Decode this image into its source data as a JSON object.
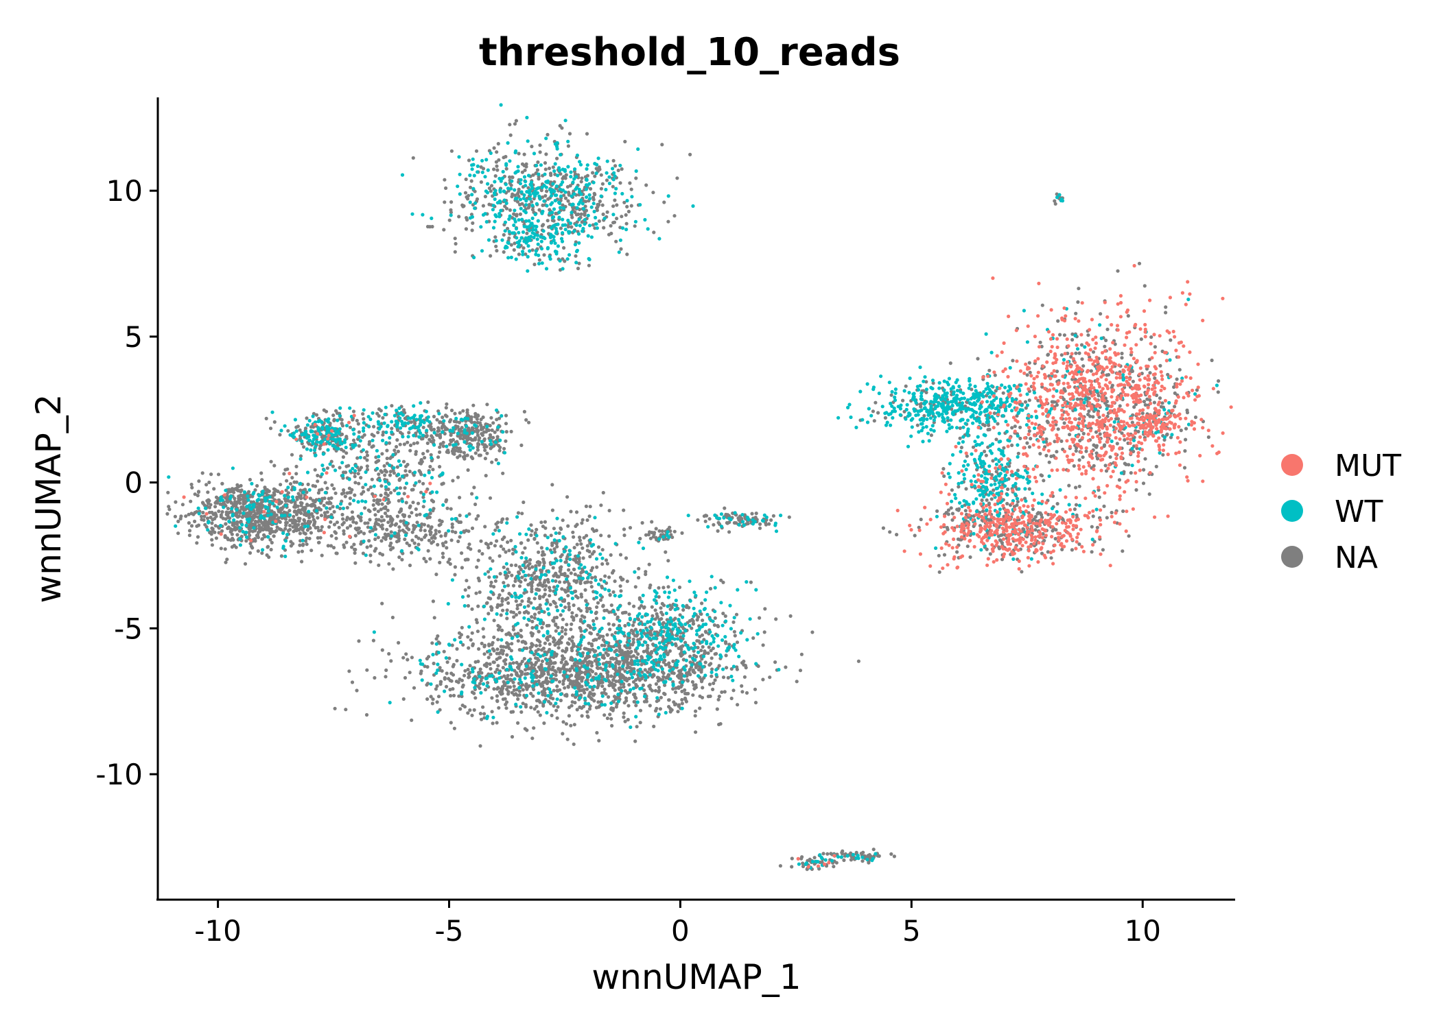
{
  "chart_data": {
    "type": "scatter",
    "title": "threshold_10_reads",
    "xlabel": "wnnUMAP_1",
    "ylabel": "wnnUMAP_2",
    "xlim": [
      -11.3,
      12
    ],
    "ylim": [
      -14.3,
      13.2
    ],
    "xticks": [
      -10,
      -5,
      0,
      5,
      10
    ],
    "xtick_labels": [
      "-10",
      "-5",
      "0",
      "5",
      "10"
    ],
    "yticks": [
      -10,
      -5,
      0,
      5,
      10
    ],
    "ytick_labels": [
      "-10",
      "-5",
      "0",
      "5",
      "10"
    ],
    "grid": false,
    "legend_position": "right",
    "series": [
      {
        "name": "MUT",
        "color": "#F8766D"
      },
      {
        "name": "WT",
        "color": "#00BFC4"
      },
      {
        "name": "NA",
        "color": "#7F7F7F"
      }
    ],
    "clusters": [
      {
        "cx": -2.9,
        "cy": 9.8,
        "sx": 1.0,
        "sy": 0.9,
        "n": 750,
        "mix": [
          0.0,
          0.45,
          0.55
        ]
      },
      {
        "cx": -3.2,
        "cy": 8.3,
        "sx": 0.6,
        "sy": 0.4,
        "n": 120,
        "mix": [
          0.0,
          0.7,
          0.3
        ]
      },
      {
        "cx": 8.2,
        "cy": 9.7,
        "sx": 0.05,
        "sy": 0.1,
        "n": 14,
        "mix": [
          0.0,
          0.3,
          0.7
        ]
      },
      {
        "cx": 9.0,
        "cy": 2.7,
        "sx": 1.1,
        "sy": 1.5,
        "n": 1300,
        "mix": [
          0.62,
          0.06,
          0.32
        ]
      },
      {
        "cx": 5.9,
        "cy": 2.6,
        "sx": 0.8,
        "sy": 0.45,
        "n": 500,
        "mix": [
          0.0,
          0.8,
          0.2
        ]
      },
      {
        "cx": 6.8,
        "cy": 0.0,
        "sx": 0.45,
        "sy": 0.9,
        "n": 300,
        "mix": [
          0.1,
          0.6,
          0.3
        ]
      },
      {
        "cx": 7.2,
        "cy": -1.6,
        "sx": 0.9,
        "sy": 0.5,
        "n": 600,
        "mix": [
          0.6,
          0.05,
          0.35
        ]
      },
      {
        "cx": 10.2,
        "cy": 2.0,
        "sx": 0.35,
        "sy": 0.35,
        "n": 120,
        "mix": [
          0.6,
          0.1,
          0.3
        ]
      },
      {
        "cx": -7.7,
        "cy": 1.7,
        "sx": 0.45,
        "sy": 0.35,
        "n": 250,
        "mix": [
          0.02,
          0.5,
          0.48
        ]
      },
      {
        "cx": -5.9,
        "cy": 2.1,
        "sx": 0.5,
        "sy": 0.3,
        "n": 150,
        "mix": [
          0.0,
          0.6,
          0.4
        ]
      },
      {
        "cx": -4.6,
        "cy": 1.6,
        "sx": 0.45,
        "sy": 0.45,
        "n": 300,
        "mix": [
          0.0,
          0.15,
          0.85
        ]
      },
      {
        "cx": -9.0,
        "cy": -1.1,
        "sx": 0.8,
        "sy": 0.55,
        "n": 900,
        "mix": [
          0.01,
          0.12,
          0.87
        ]
      },
      {
        "cx": -6.5,
        "cy": 0.2,
        "sx": 0.9,
        "sy": 0.8,
        "n": 350,
        "mix": [
          0.01,
          0.2,
          0.79
        ]
      },
      {
        "cx": -6.0,
        "cy": -1.7,
        "sx": 0.9,
        "sy": 0.5,
        "n": 250,
        "mix": [
          0.0,
          0.05,
          0.95
        ]
      },
      {
        "cx": -2.3,
        "cy": -6.5,
        "sx": 1.6,
        "sy": 0.8,
        "n": 1500,
        "mix": [
          0.0,
          0.15,
          0.85
        ]
      },
      {
        "cx": -2.8,
        "cy": -3.3,
        "sx": 1.0,
        "sy": 1.1,
        "n": 700,
        "mix": [
          0.0,
          0.18,
          0.82
        ]
      },
      {
        "cx": -0.2,
        "cy": -5.2,
        "sx": 0.8,
        "sy": 0.8,
        "n": 500,
        "mix": [
          0.0,
          0.45,
          0.55
        ]
      },
      {
        "cx": 1.3,
        "cy": -1.3,
        "sx": 0.5,
        "sy": 0.15,
        "n": 100,
        "mix": [
          0.0,
          0.2,
          0.8
        ]
      },
      {
        "cx": -0.4,
        "cy": -1.8,
        "sx": 0.2,
        "sy": 0.15,
        "n": 40,
        "mix": [
          0.0,
          0.1,
          0.9
        ]
      },
      {
        "cx": 3.0,
        "cy": -13.0,
        "sx": 0.3,
        "sy": 0.12,
        "n": 60,
        "mix": [
          0.08,
          0.25,
          0.67
        ]
      },
      {
        "cx": 3.8,
        "cy": -12.8,
        "sx": 0.3,
        "sy": 0.1,
        "n": 60,
        "mix": [
          0.0,
          0.2,
          0.8
        ]
      }
    ]
  }
}
